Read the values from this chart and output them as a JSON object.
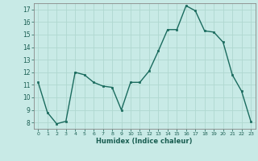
{
  "x": [
    0,
    1,
    2,
    3,
    4,
    5,
    6,
    7,
    8,
    9,
    10,
    11,
    12,
    13,
    14,
    15,
    16,
    17,
    18,
    19,
    20,
    21,
    22,
    23
  ],
  "y": [
    11.2,
    8.8,
    7.9,
    8.1,
    12.0,
    11.8,
    11.2,
    10.9,
    10.8,
    9.0,
    11.2,
    11.2,
    12.1,
    13.7,
    15.4,
    15.4,
    17.3,
    16.9,
    15.3,
    15.2,
    14.4,
    11.8,
    10.5,
    8.1
  ],
  "bg_color": "#c8eae6",
  "line_color": "#1a6b5e",
  "marker_color": "#1a6b5e",
  "grid_color": "#b0d8d0",
  "xlabel": "Humidex (Indice chaleur)",
  "ylim": [
    7.5,
    17.5
  ],
  "xlim": [
    -0.5,
    23.5
  ],
  "yticks": [
    8,
    9,
    10,
    11,
    12,
    13,
    14,
    15,
    16,
    17
  ],
  "xticks": [
    0,
    1,
    2,
    3,
    4,
    5,
    6,
    7,
    8,
    9,
    10,
    11,
    12,
    13,
    14,
    15,
    16,
    17,
    18,
    19,
    20,
    21,
    22,
    23
  ],
  "font_color": "#1a5e52"
}
